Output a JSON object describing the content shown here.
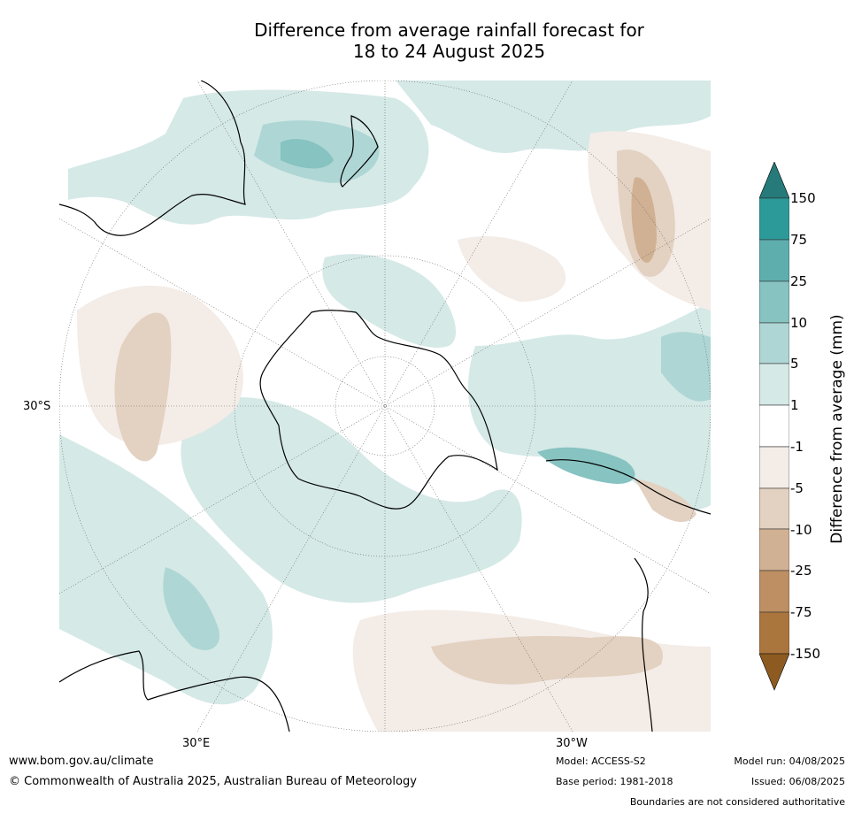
{
  "title": {
    "line1": "Difference from average rainfall forecast for",
    "line2": "18 to 24 August 2025"
  },
  "map": {
    "projection": "south-polar stereographic",
    "lat_label": "30°S",
    "lon_labels": {
      "east": "30°E",
      "west": "30°W"
    }
  },
  "legend": {
    "title": "Difference from average (mm)",
    "ticks": [
      "150",
      "75",
      "25",
      "10",
      "5",
      "1",
      "-1",
      "-5",
      "-10",
      "-25",
      "-75",
      "-150"
    ],
    "colors": {
      "above_150": "#267a7a",
      "75_150": "#2d9a9a",
      "25_75": "#5eaeae",
      "10_25": "#86c3c1",
      "5_10": "#aed6d5",
      "1_5": "#d5e9e7",
      "neutral": "#ffffff",
      "m5_m1": "#f3ece7",
      "m10_m5": "#e3d1c1",
      "m25_m10": "#d1b193",
      "m75_m25": "#be8f62",
      "m150_m75": "#ab753e",
      "below_m150": "#8d5b21"
    }
  },
  "footer": {
    "website": "www.bom.gov.au/climate",
    "copyright": "© Commonwealth of Australia 2025, Australian Bureau of Meteorology",
    "model": "Model: ACCESS-S2",
    "base_period": "Base period: 1981-2018",
    "model_run": "Model run: 04/08/2025",
    "issued": "Issued: 06/08/2025",
    "disclaimer": "Boundaries are not considered authoritative"
  }
}
